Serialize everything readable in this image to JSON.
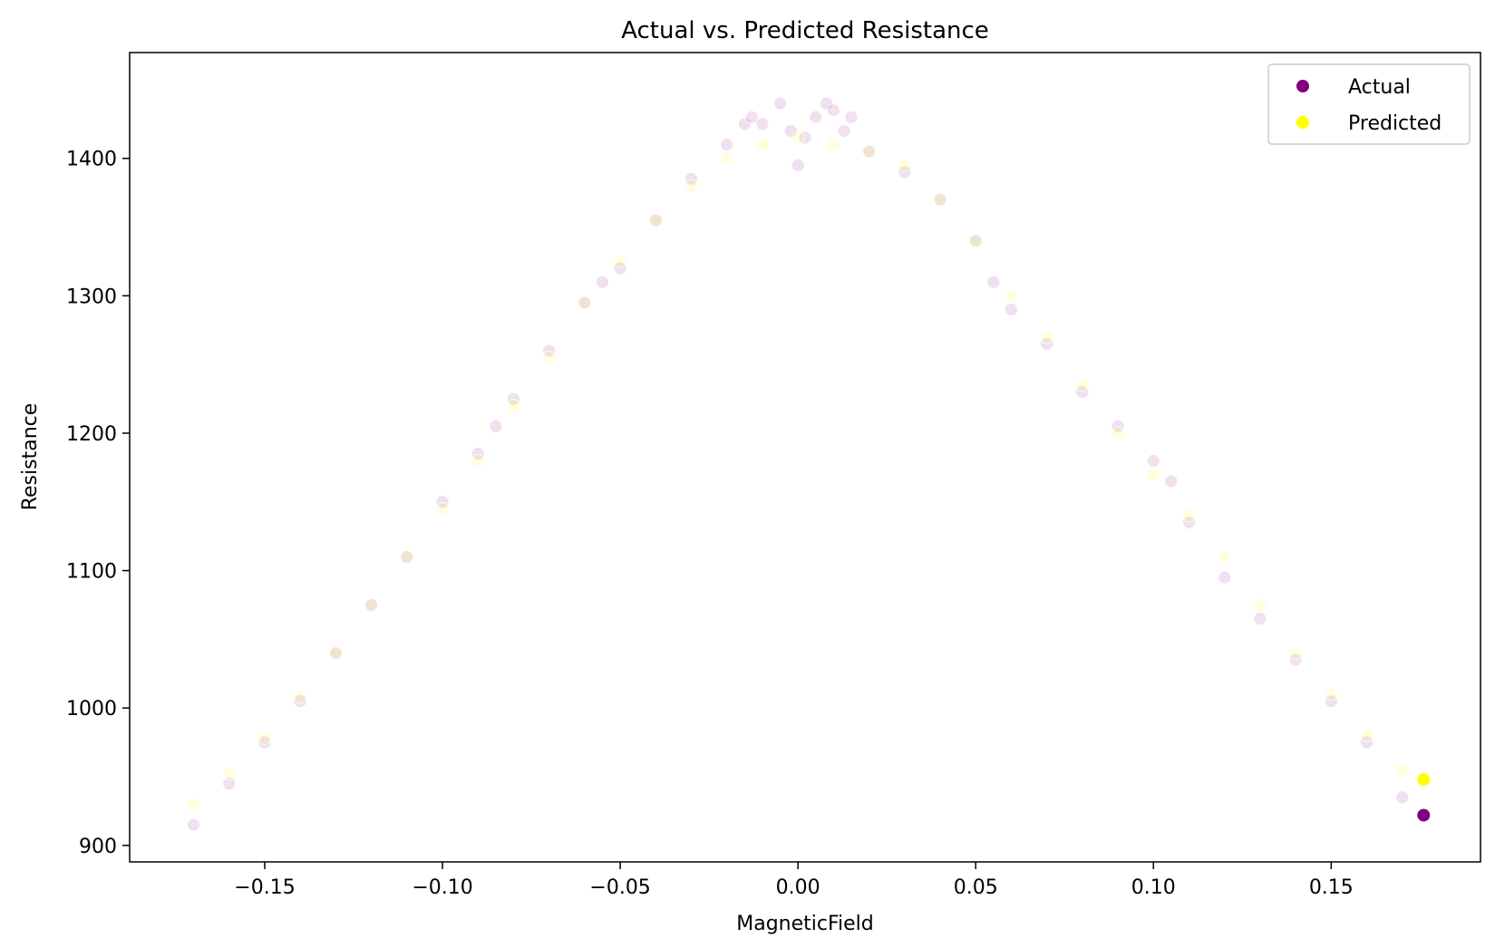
{
  "chart_data": {
    "type": "scatter",
    "title": "Actual vs. Predicted Resistance",
    "xlabel": "MagneticField",
    "ylabel": "Resistance",
    "xlim": [
      -0.188,
      0.192
    ],
    "ylim": [
      888,
      1477
    ],
    "x_ticks": [
      -0.15,
      -0.1,
      -0.05,
      0.0,
      0.05,
      0.1,
      0.15
    ],
    "x_tick_labels": [
      "−0.15",
      "−0.10",
      "−0.05",
      "0.00",
      "0.05",
      "0.10",
      "0.15"
    ],
    "y_ticks": [
      900,
      1000,
      1100,
      1200,
      1300,
      1400
    ],
    "y_tick_labels": [
      "900",
      "1000",
      "1100",
      "1200",
      "1300",
      "1400"
    ],
    "grid": false,
    "legend_position": "top-right",
    "series": [
      {
        "name": "Actual",
        "color": "#800080",
        "x": [
          -0.17,
          -0.16,
          -0.15,
          -0.14,
          -0.13,
          -0.12,
          -0.11,
          -0.1,
          -0.09,
          -0.085,
          -0.08,
          -0.07,
          -0.06,
          -0.055,
          -0.05,
          -0.04,
          -0.03,
          -0.02,
          -0.015,
          -0.013,
          -0.01,
          -0.005,
          -0.002,
          0.0,
          0.002,
          0.005,
          0.008,
          0.01,
          0.013,
          0.015,
          0.02,
          0.03,
          0.04,
          0.05,
          0.055,
          0.06,
          0.07,
          0.08,
          0.09,
          0.1,
          0.105,
          0.11,
          0.12,
          0.13,
          0.14,
          0.15,
          0.16,
          0.17,
          0.176
        ],
        "y": [
          915,
          945,
          975,
          1005,
          1040,
          1075,
          1110,
          1150,
          1185,
          1205,
          1225,
          1260,
          1295,
          1310,
          1320,
          1355,
          1385,
          1410,
          1425,
          1430,
          1425,
          1440,
          1420,
          1395,
          1415,
          1430,
          1440,
          1435,
          1420,
          1430,
          1405,
          1390,
          1370,
          1340,
          1310,
          1290,
          1265,
          1230,
          1205,
          1180,
          1165,
          1135,
          1095,
          1065,
          1035,
          1005,
          975,
          935,
          922
        ]
      },
      {
        "name": "Predicted",
        "color": "#ffff00",
        "x": [
          -0.17,
          -0.16,
          -0.15,
          -0.14,
          -0.13,
          -0.12,
          -0.11,
          -0.1,
          -0.09,
          -0.08,
          -0.07,
          -0.06,
          -0.05,
          -0.04,
          -0.03,
          -0.02,
          -0.01,
          0.0,
          0.01,
          0.02,
          0.03,
          0.04,
          0.05,
          0.06,
          0.07,
          0.08,
          0.09,
          0.1,
          0.11,
          0.12,
          0.13,
          0.14,
          0.15,
          0.16,
          0.17,
          0.176
        ],
        "y": [
          930,
          952,
          978,
          1008,
          1040,
          1075,
          1110,
          1145,
          1180,
          1220,
          1255,
          1295,
          1325,
          1355,
          1380,
          1400,
          1410,
          1415,
          1410,
          1405,
          1395,
          1370,
          1340,
          1300,
          1270,
          1235,
          1200,
          1170,
          1140,
          1110,
          1075,
          1040,
          1010,
          980,
          955,
          948
        ]
      }
    ]
  }
}
